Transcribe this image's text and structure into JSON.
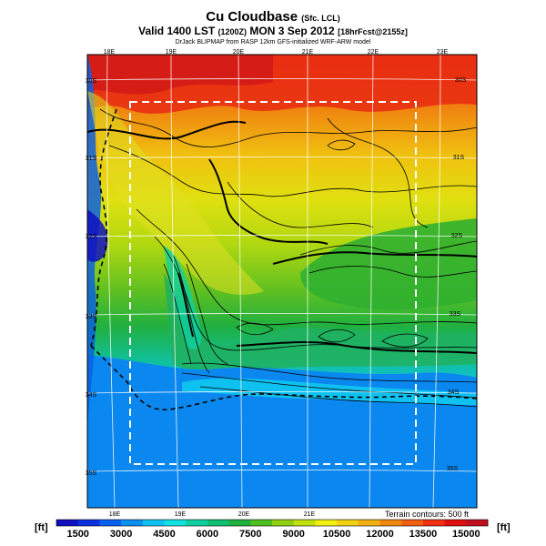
{
  "header": {
    "title": "Cu Cloudbase",
    "title_suffix": "(Sfc. LCL)",
    "valid_line": "Valid 1400 LST",
    "valid_local": "(1200Z)",
    "valid_date": "MON 3 Sep 2012",
    "forecast_info": "[18hrFcst@2155z]",
    "credit": "DrJack BLIPMAP from RASP 12km GFS-initialized WRF-ARW model"
  },
  "map": {
    "lon_labels_top": [
      "18E",
      "19E",
      "20E",
      "21E",
      "22E",
      "23E"
    ],
    "lon_labels_bottom": [
      "18E",
      "19E",
      "20E",
      "21E"
    ],
    "lat_labels_left": [
      "30S",
      "31S",
      "32S",
      "33S",
      "34S",
      "35S"
    ],
    "lat_labels_right": [
      "30S",
      "31S",
      "32S",
      "33S",
      "34S",
      "35S"
    ]
  },
  "legend": {
    "unit_left": "[ft]",
    "unit_right": "[ft]",
    "terrain_note": "Terrain contours: 500 ft",
    "tick_labels": [
      "1500",
      "3000",
      "4500",
      "6000",
      "7500",
      "9000",
      "10500",
      "12000",
      "13500",
      "15000"
    ],
    "colors": [
      "#1010c0",
      "#0a30e0",
      "#0a60f0",
      "#0a90f0",
      "#10c0f0",
      "#10e0e0",
      "#10d0a0",
      "#10c070",
      "#20b040",
      "#50c020",
      "#90d010",
      "#c0e010",
      "#f0f010",
      "#f0d010",
      "#f0b010",
      "#f08810",
      "#f06010",
      "#f03010",
      "#e01010",
      "#c01020"
    ]
  }
}
